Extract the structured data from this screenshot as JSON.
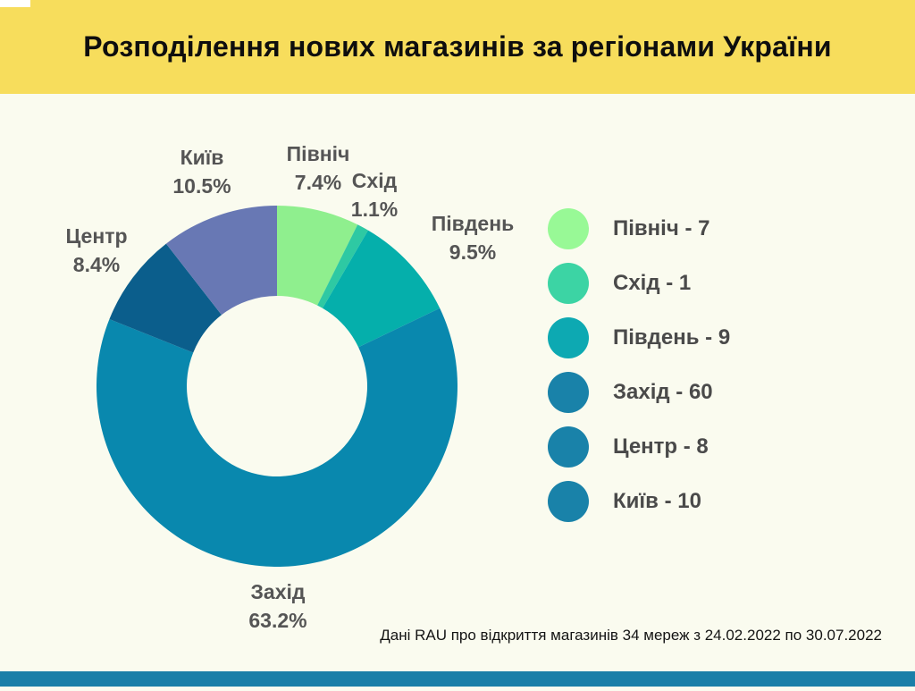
{
  "chart_data": {
    "type": "pie",
    "subtype": "donut",
    "title": "Розподілення нових магазинів за регіонами України",
    "hole_ratio": 0.5,
    "start_angle_deg": 0,
    "direction": "clockwise",
    "legend_position": "right",
    "total": 95,
    "series": [
      {
        "label": "Північ",
        "value": 7,
        "pct": "7.4%",
        "slice_color": "#8FEF8E",
        "legend_color": "#98F996",
        "legend_text": "Північ - 7"
      },
      {
        "label": "Схід",
        "value": 1,
        "pct": "1.1%",
        "slice_color": "#2EC9A3",
        "legend_color": "#3CD4A4",
        "legend_text": "Схід - 1"
      },
      {
        "label": "Південь",
        "value": 9,
        "pct": "9.5%",
        "slice_color": "#05AFAB",
        "legend_color": "#0DA9B2",
        "legend_text": "Південь - 9"
      },
      {
        "label": "Захід",
        "value": 60,
        "pct": "63.2%",
        "slice_color": "#0988AE",
        "legend_color": "#1982A9",
        "legend_text": "Захід - 60"
      },
      {
        "label": "Центр",
        "value": 8,
        "pct": "8.4%",
        "slice_color": "#0B5E8C",
        "legend_color": "#1982A9",
        "legend_text": "Центр - 8"
      },
      {
        "label": "Київ",
        "value": 10,
        "pct": "10.5%",
        "slice_color": "#6878B4",
        "legend_color": "#1982A9",
        "legend_text": "Київ - 10"
      }
    ],
    "source_note": "Дані RAU про відкриття магазинів 34 мереж з 24.02.2022 по 30.07.2022"
  },
  "colors": {
    "header_bg": "#F7DD5C",
    "page_bg": "#FAFBEF",
    "bottom_bar": "#1A7FA8",
    "label_text": "#555555",
    "legend_text": "#4A4A4A"
  }
}
